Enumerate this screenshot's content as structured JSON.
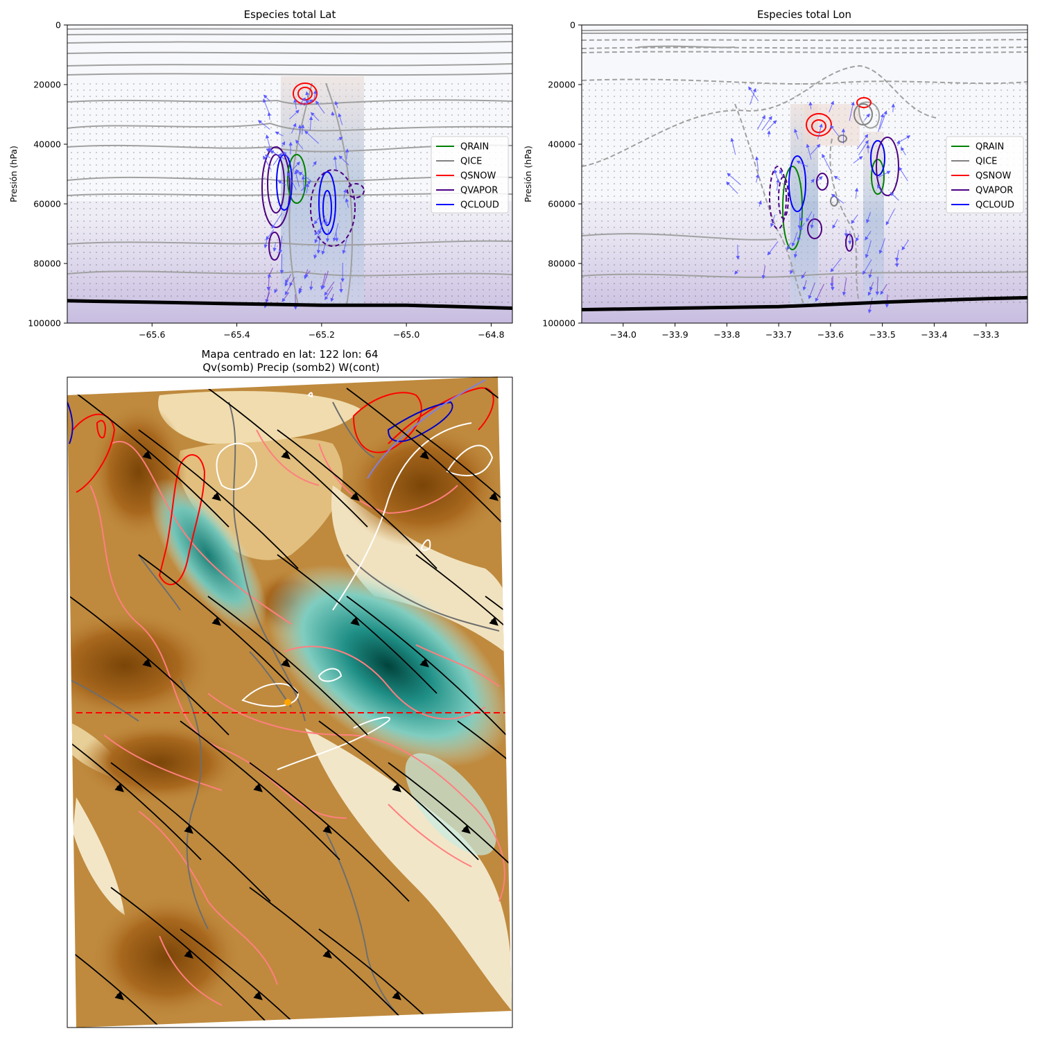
{
  "colors": {
    "QRAIN": "#008000",
    "QICE": "#808080",
    "QSNOW": "#ff0000",
    "QVAPOR": "#4b0082",
    "QCLOUD": "#0000ff",
    "surface": "#000000",
    "background_contour": "#a0a0a0",
    "wind_vectors": "#5a5aff",
    "section_line": "#ff0000",
    "center_point": "#ffa500"
  },
  "chart_data": [
    {
      "type": "contour",
      "title": "Especies total Lat",
      "xlabel": "",
      "ylabel": "Presión (hPa)",
      "xlim": [
        -65.8,
        -64.75
      ],
      "ylim": [
        100000,
        0
      ],
      "xticks": [
        -65.6,
        -65.4,
        -65.2,
        -65.0,
        -64.8
      ],
      "xtick_labels": [
        "−65.6",
        "−65.4",
        "−65.2",
        "−65.0",
        "−64.8"
      ],
      "yticks": [
        0,
        20000,
        40000,
        60000,
        80000,
        100000
      ],
      "ytick_labels": [
        "0",
        "20000",
        "40000",
        "60000",
        "80000",
        "100000"
      ],
      "legend": [
        "QRAIN",
        "QICE",
        "QSNOW",
        "QVAPOR",
        "QCLOUD"
      ],
      "legend_position": "right",
      "features": {
        "QSNOW": {
          "x": -65.22,
          "y": 27000
        },
        "QVAPOR": {
          "x": -65.3,
          "y": 58000
        },
        "QRAIN": {
          "x": -65.27,
          "y": 55000
        },
        "QCLOUD": [
          {
            "x": -65.29,
            "y": 55000
          },
          {
            "x": -65.18,
            "y": 62000
          }
        ],
        "QVAPOR_dashed": {
          "x": -65.13,
          "y": 57000
        }
      },
      "surface": [
        {
          "x": -65.8,
          "y": 92500
        },
        {
          "x": -65.6,
          "y": 93000
        },
        {
          "x": -65.4,
          "y": 93500
        },
        {
          "x": -65.2,
          "y": 94000
        },
        {
          "x": -65.0,
          "y": 94000
        },
        {
          "x": -64.8,
          "y": 94800
        },
        {
          "x": -64.75,
          "y": 95000
        }
      ]
    },
    {
      "type": "contour",
      "title": "Especies total Lon",
      "xlabel": "",
      "ylabel": "Presión (hPa)",
      "xlim": [
        -34.08,
        -33.22
      ],
      "ylim": [
        100000,
        0
      ],
      "xticks": [
        -34.0,
        -33.9,
        -33.8,
        -33.7,
        -33.6,
        -33.5,
        -33.4,
        -33.3
      ],
      "xtick_labels": [
        "−34.0",
        "−33.9",
        "−33.8",
        "−33.7",
        "−33.6",
        "−33.5",
        "−33.4",
        "−33.3"
      ],
      "yticks": [
        0,
        20000,
        40000,
        60000,
        80000,
        100000
      ],
      "ytick_labels": [
        "0",
        "20000",
        "40000",
        "60000",
        "80000",
        "100000"
      ],
      "legend": [
        "QRAIN",
        "QICE",
        "QSNOW",
        "QVAPOR",
        "QCLOUD"
      ],
      "legend_position": "right",
      "features": {
        "QSNOW": [
          {
            "x": -33.61,
            "y": 34000
          },
          {
            "x": -33.55,
            "y": 26000
          }
        ],
        "QRAIN": [
          {
            "x": -33.66,
            "y": 62000
          },
          {
            "x": -33.49,
            "y": 51000
          }
        ],
        "QCLOUD": [
          {
            "x": -33.65,
            "y": 50000
          },
          {
            "x": -33.5,
            "y": 44000
          }
        ],
        "QVAPOR": [
          {
            "x": -33.48,
            "y": 48000
          },
          {
            "x": -33.62,
            "y": 68000
          }
        ],
        "QVAPOR_dashed": {
          "x": -33.68,
          "y": 60000
        }
      },
      "surface": [
        {
          "x": -34.08,
          "y": 95500
        },
        {
          "x": -33.9,
          "y": 95000
        },
        {
          "x": -33.7,
          "y": 94500
        },
        {
          "x": -33.5,
          "y": 93000
        },
        {
          "x": -33.3,
          "y": 91800
        },
        {
          "x": -33.22,
          "y": 91500
        }
      ]
    },
    {
      "type": "map",
      "title": "Mapa centrado en lat: 122 lon: 64",
      "subtitle": "Qv(somb) Precip (somb2) W(cont)",
      "xlabel": "",
      "ylabel": "",
      "colormap": "BrBG",
      "center": {
        "lat": 122,
        "lon": 64
      },
      "streamlines": "black",
      "cross_section_line": "dashed red horizontal"
    }
  ]
}
